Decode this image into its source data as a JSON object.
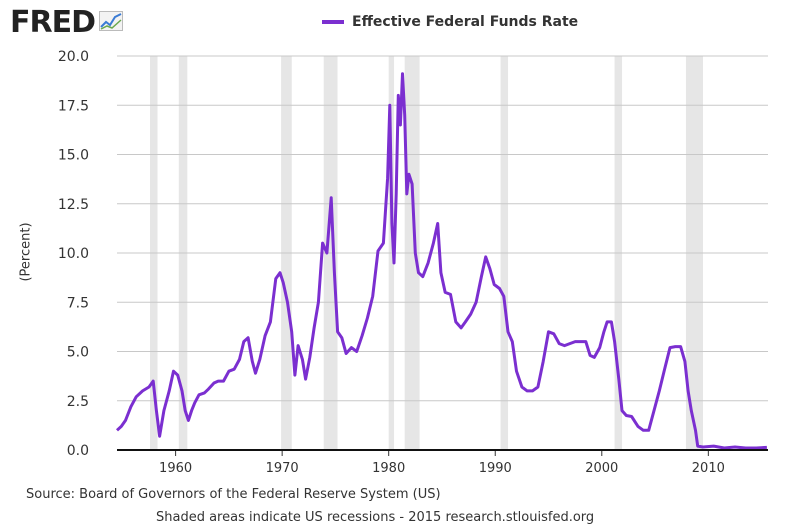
{
  "header": {
    "logo_text": "FRED",
    "logo_icon": "chart-line-icon"
  },
  "chart_data": {
    "type": "line",
    "title": "Effective Federal Funds Rate",
    "xlabel": "",
    "ylabel": "(Percent)",
    "xlim": [
      1954.5,
      2015.6
    ],
    "ylim": [
      0,
      20
    ],
    "yticks": [
      0.0,
      2.5,
      5.0,
      7.5,
      10.0,
      12.5,
      15.0,
      17.5,
      20.0
    ],
    "ytick_labels": [
      "0.0",
      "2.5",
      "5.0",
      "7.5",
      "10.0",
      "12.5",
      "15.0",
      "17.5",
      "20.0"
    ],
    "xticks": [
      1960,
      1970,
      1980,
      1990,
      2000,
      2010
    ],
    "xtick_labels": [
      "1960",
      "1970",
      "1980",
      "1990",
      "2000",
      "2010"
    ],
    "grid": true,
    "legend_position": "top-center",
    "recessions": [
      [
        1957.6,
        1958.3
      ],
      [
        1960.3,
        1961.1
      ],
      [
        1969.9,
        1970.9
      ],
      [
        1973.9,
        1975.2
      ],
      [
        1980.0,
        1980.5
      ],
      [
        1981.5,
        1982.9
      ],
      [
        1990.5,
        1991.2
      ],
      [
        2001.2,
        2001.9
      ],
      [
        2007.9,
        2009.5
      ]
    ],
    "series": [
      {
        "name": "Effective Federal Funds Rate",
        "color": "#7b2fd0",
        "x": [
          1954.5,
          1954.9,
          1955.3,
          1955.8,
          1956.3,
          1956.9,
          1957.5,
          1957.9,
          1958.2,
          1958.5,
          1958.9,
          1959.4,
          1959.8,
          1960.2,
          1960.6,
          1960.9,
          1961.2,
          1961.5,
          1961.8,
          1962.2,
          1962.7,
          1963.1,
          1963.6,
          1964.0,
          1964.5,
          1965.0,
          1965.5,
          1966.0,
          1966.4,
          1966.8,
          1967.2,
          1967.5,
          1967.9,
          1968.4,
          1968.9,
          1969.4,
          1969.8,
          1970.1,
          1970.5,
          1970.9,
          1971.2,
          1971.5,
          1971.9,
          1972.2,
          1972.6,
          1973.0,
          1973.4,
          1973.8,
          1974.2,
          1974.6,
          1974.9,
          1975.2,
          1975.6,
          1976.0,
          1976.5,
          1977.0,
          1977.5,
          1978.0,
          1978.5,
          1979.0,
          1979.5,
          1979.9,
          1980.1,
          1980.3,
          1980.5,
          1980.7,
          1980.9,
          1981.1,
          1981.3,
          1981.5,
          1981.7,
          1981.9,
          1982.2,
          1982.5,
          1982.8,
          1983.2,
          1983.7,
          1984.2,
          1984.6,
          1984.9,
          1985.3,
          1985.8,
          1986.3,
          1986.8,
          1987.2,
          1987.7,
          1988.2,
          1988.7,
          1989.1,
          1989.5,
          1989.9,
          1990.4,
          1990.8,
          1991.2,
          1991.6,
          1992.0,
          1992.5,
          1993.0,
          1993.5,
          1994.0,
          1994.5,
          1995.0,
          1995.5,
          1996.0,
          1996.5,
          1997.0,
          1997.5,
          1998.0,
          1998.5,
          1998.9,
          1999.3,
          1999.8,
          2000.2,
          2000.5,
          2000.9,
          2001.2,
          2001.6,
          2001.9,
          2002.3,
          2002.8,
          2003.4,
          2003.9,
          2004.4,
          2004.9,
          2005.4,
          2005.9,
          2006.4,
          2006.9,
          2007.4,
          2007.8,
          2008.1,
          2008.4,
          2008.8,
          2009.0,
          2009.5,
          2010.5,
          2011.5,
          2012.5,
          2013.5,
          2014.5,
          2015.5
        ],
        "values": [
          1.0,
          1.2,
          1.5,
          2.2,
          2.7,
          3.0,
          3.2,
          3.5,
          2.0,
          0.7,
          2.0,
          3.0,
          4.0,
          3.8,
          3.0,
          2.0,
          1.5,
          2.0,
          2.4,
          2.8,
          2.9,
          3.1,
          3.4,
          3.5,
          3.5,
          4.0,
          4.1,
          4.6,
          5.5,
          5.7,
          4.5,
          3.9,
          4.6,
          5.8,
          6.5,
          8.7,
          9.0,
          8.5,
          7.5,
          6.0,
          3.8,
          5.3,
          4.6,
          3.6,
          4.7,
          6.2,
          7.5,
          10.5,
          10.0,
          12.8,
          9.0,
          6.0,
          5.7,
          4.9,
          5.2,
          5.0,
          5.8,
          6.7,
          7.8,
          10.1,
          10.5,
          13.8,
          17.5,
          11.5,
          9.5,
          13.0,
          18.0,
          16.5,
          19.1,
          17.0,
          13.0,
          14.0,
          13.5,
          10.0,
          9.0,
          8.8,
          9.5,
          10.5,
          11.5,
          9.0,
          8.0,
          7.9,
          6.5,
          6.2,
          6.5,
          6.9,
          7.5,
          8.8,
          9.8,
          9.2,
          8.4,
          8.2,
          7.8,
          6.0,
          5.5,
          4.0,
          3.2,
          3.0,
          3.0,
          3.2,
          4.5,
          6.0,
          5.9,
          5.4,
          5.3,
          5.4,
          5.5,
          5.5,
          5.5,
          4.8,
          4.7,
          5.2,
          6.0,
          6.5,
          6.5,
          5.5,
          3.6,
          2.0,
          1.75,
          1.7,
          1.2,
          1.0,
          1.0,
          2.0,
          3.0,
          4.1,
          5.2,
          5.25,
          5.25,
          4.5,
          3.0,
          2.0,
          1.0,
          0.2,
          0.15,
          0.2,
          0.1,
          0.15,
          0.1,
          0.1,
          0.13
        ]
      }
    ]
  },
  "source_text": "Source: Board of Governors of the Federal Reserve System (US)",
  "note_text": "Shaded areas indicate US recessions - 2015 research.stlouisfed.org"
}
